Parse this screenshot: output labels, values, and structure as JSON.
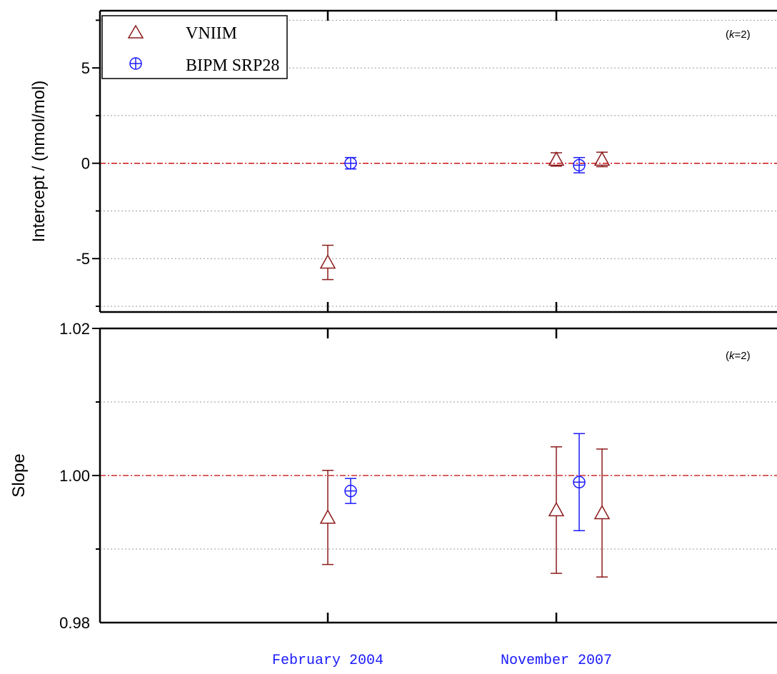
{
  "chart_data": [
    {
      "type": "scatter",
      "ylabel": "Intercept / (nmol/mol)",
      "ylim": [
        -7.8,
        8
      ],
      "yticks": [
        -5,
        0,
        5
      ],
      "reference_line": 0,
      "grid": true,
      "annotation": "(k=2)",
      "series": [
        {
          "name": "VNIIM",
          "color": "#8b1a1a",
          "marker": "triangle",
          "points": [
            {
              "x": "February 2004",
              "offset": 0,
              "y": -5.2,
              "err": 0.9
            },
            {
              "x": "November 2007",
              "offset": 0,
              "y": 0.2,
              "err": 0.35
            },
            {
              "x": "November 2007",
              "offset": 2,
              "y": 0.2,
              "err": 0.38
            }
          ]
        },
        {
          "name": "BIPM SRP28",
          "color": "#1a1aff",
          "marker": "circle-plus",
          "points": [
            {
              "x": "February 2004",
              "offset": 1,
              "y": 0.0,
              "err": 0.3
            },
            {
              "x": "November 2007",
              "offset": 1,
              "y": -0.1,
              "err": 0.4
            }
          ]
        }
      ]
    },
    {
      "type": "scatter",
      "ylabel": "Slope",
      "ylim": [
        0.98,
        1.02
      ],
      "yticks": [
        0.98,
        1.0,
        1.02
      ],
      "reference_line": 1.0,
      "grid": true,
      "annotation": "(k=2)",
      "series": [
        {
          "name": "VNIIM",
          "color": "#8b1a1a",
          "marker": "triangle",
          "points": [
            {
              "x": "February 2004",
              "offset": 0,
              "y": 0.9943,
              "err": 0.0064
            },
            {
              "x": "November 2007",
              "offset": 0,
              "y": 0.9953,
              "err": 0.0086
            },
            {
              "x": "November 2007",
              "offset": 2,
              "y": 0.9949,
              "err": 0.0087
            }
          ]
        },
        {
          "name": "BIPM SRP28",
          "color": "#1a1aff",
          "marker": "circle-plus",
          "points": [
            {
              "x": "February 2004",
              "offset": 1,
              "y": 0.9979,
              "err": 0.0017
            },
            {
              "x": "November 2007",
              "offset": 1,
              "y": 0.9991,
              "err": 0.0066
            }
          ]
        }
      ]
    }
  ],
  "x_categories": [
    "February 2004",
    "November 2007"
  ],
  "legend": {
    "placement": "top-left",
    "items": [
      {
        "name": "VNIIM",
        "color": "#8b1a1a",
        "marker": "triangle"
      },
      {
        "name": "BIPM SRP28",
        "color": "#1a1aff",
        "marker": "circle-plus"
      }
    ]
  },
  "reference_line_color": "#cc0000",
  "annotation_parts": {
    "pre": "(",
    "k": "k",
    "post": "=2)"
  }
}
